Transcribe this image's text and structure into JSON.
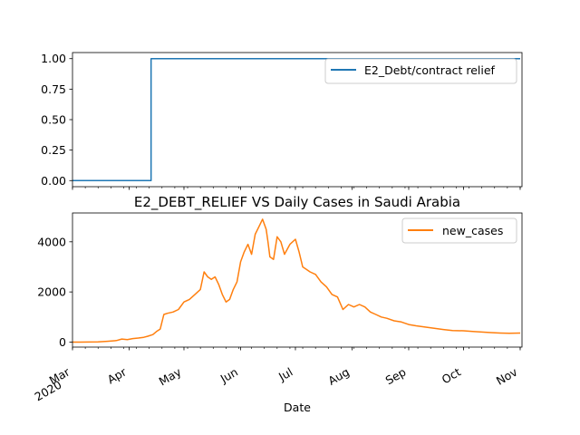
{
  "chart_data": [
    {
      "type": "line",
      "title": "",
      "xlabel": "",
      "ylabel": "",
      "ylim": [
        -0.05,
        1.05
      ],
      "yticks": [
        "0.00",
        "0.25",
        "0.50",
        "0.75",
        "1.00"
      ],
      "yticks_values": [
        0,
        0.25,
        0.5,
        0.75,
        1.0
      ],
      "xlim": [
        "2020-03-01",
        "2020-11-02"
      ],
      "x_major_ticks": [
        "2020-03-01",
        "2020-04-01",
        "2020-05-01",
        "2020-06-01",
        "2020-07-01",
        "2020-08-01",
        "2020-09-01",
        "2020-10-01",
        "2020-11-01"
      ],
      "x_tick_labels_shown": false,
      "grid": false,
      "legend": "upper-right",
      "series": [
        {
          "name": "E2_Debt/contract relief",
          "color": "#1f77b4",
          "x": [
            "2020-03-01",
            "2020-04-13",
            "2020-04-13",
            "2020-11-01"
          ],
          "values": [
            0,
            0,
            1,
            1
          ]
        }
      ]
    },
    {
      "type": "line",
      "title": "E2_DEBT_RELIEF VS Daily Cases in Saudi Arabia",
      "xlabel": "Date",
      "ylabel": "",
      "ylim": [
        -200,
        5150
      ],
      "yticks": [
        "0",
        "2000",
        "4000"
      ],
      "yticks_values": [
        0,
        2000,
        4000
      ],
      "xlim": [
        "2020-03-01",
        "2020-11-02"
      ],
      "x_major_ticks": [
        "2020-03-01",
        "2020-04-01",
        "2020-05-01",
        "2020-06-01",
        "2020-07-01",
        "2020-08-01",
        "2020-09-01",
        "2020-10-01",
        "2020-11-01"
      ],
      "x_tick_labels": [
        "Mar\n2020",
        "Apr",
        "May",
        "Jun",
        "Jul",
        "Aug",
        "Sep",
        "Oct",
        "Nov"
      ],
      "grid": false,
      "legend": "upper-right",
      "series": [
        {
          "name": "new_cases",
          "color": "#ff7f0e",
          "x": [
            "2020-03-01",
            "2020-03-05",
            "2020-03-10",
            "2020-03-15",
            "2020-03-20",
            "2020-03-25",
            "2020-03-28",
            "2020-03-31",
            "2020-04-03",
            "2020-04-06",
            "2020-04-09",
            "2020-04-11",
            "2020-04-14",
            "2020-04-16",
            "2020-04-18",
            "2020-04-20",
            "2020-04-22",
            "2020-04-25",
            "2020-04-28",
            "2020-05-01",
            "2020-05-04",
            "2020-05-07",
            "2020-05-10",
            "2020-05-12",
            "2020-05-14",
            "2020-05-16",
            "2020-05-18",
            "2020-05-20",
            "2020-05-22",
            "2020-05-24",
            "2020-05-26",
            "2020-05-28",
            "2020-05-30",
            "2020-06-01",
            "2020-06-03",
            "2020-06-05",
            "2020-06-07",
            "2020-06-09",
            "2020-06-11",
            "2020-06-13",
            "2020-06-15",
            "2020-06-16",
            "2020-06-17",
            "2020-06-19",
            "2020-06-21",
            "2020-06-23",
            "2020-06-25",
            "2020-06-28",
            "2020-07-01",
            "2020-07-03",
            "2020-07-05",
            "2020-07-07",
            "2020-07-09",
            "2020-07-12",
            "2020-07-15",
            "2020-07-18",
            "2020-07-21",
            "2020-07-24",
            "2020-07-27",
            "2020-07-30",
            "2020-08-02",
            "2020-08-05",
            "2020-08-08",
            "2020-08-11",
            "2020-08-14",
            "2020-08-17",
            "2020-08-20",
            "2020-08-24",
            "2020-08-28",
            "2020-09-01",
            "2020-09-05",
            "2020-09-10",
            "2020-09-15",
            "2020-09-20",
            "2020-09-25",
            "2020-10-01",
            "2020-10-06",
            "2020-10-11",
            "2020-10-16",
            "2020-10-21",
            "2020-10-26",
            "2020-11-01"
          ],
          "values": [
            0,
            0,
            2,
            10,
            30,
            60,
            120,
            100,
            140,
            160,
            190,
            230,
            300,
            420,
            520,
            1100,
            1150,
            1200,
            1300,
            1600,
            1700,
            1900,
            2100,
            2800,
            2600,
            2500,
            2600,
            2300,
            1900,
            1600,
            1700,
            2100,
            2400,
            3200,
            3600,
            3900,
            3500,
            4300,
            4600,
            4900,
            4500,
            4000,
            3400,
            3300,
            4200,
            4000,
            3500,
            3900,
            4100,
            3600,
            3000,
            2900,
            2800,
            2700,
            2400,
            2200,
            1900,
            1800,
            1300,
            1500,
            1400,
            1500,
            1400,
            1200,
            1100,
            1000,
            950,
            850,
            800,
            700,
            650,
            600,
            550,
            500,
            460,
            450,
            420,
            400,
            380,
            360,
            350,
            360
          ]
        }
      ]
    }
  ]
}
